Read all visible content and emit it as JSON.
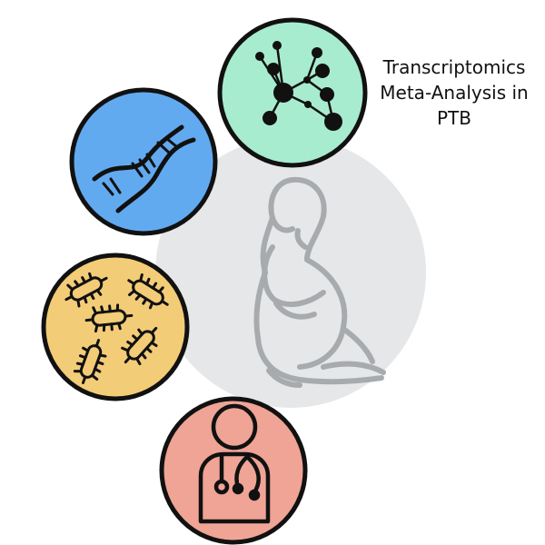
{
  "title": {
    "lines": [
      "Transcriptomics",
      "Meta-Analysis in",
      "PTB"
    ]
  },
  "colors": {
    "center_circle": "#e6e7e9",
    "network_circle": "#a8eccf",
    "dna_circle": "#62aaf0",
    "bacteria_circle": "#f3cc77",
    "clinician_circle": "#efa496",
    "pregnant_outline": "#a8abae",
    "icon_stroke": "#111111"
  },
  "icons": [
    "pregnant-woman-icon",
    "network-icon",
    "dna-icon",
    "bacteria-icon",
    "clinician-icon"
  ]
}
